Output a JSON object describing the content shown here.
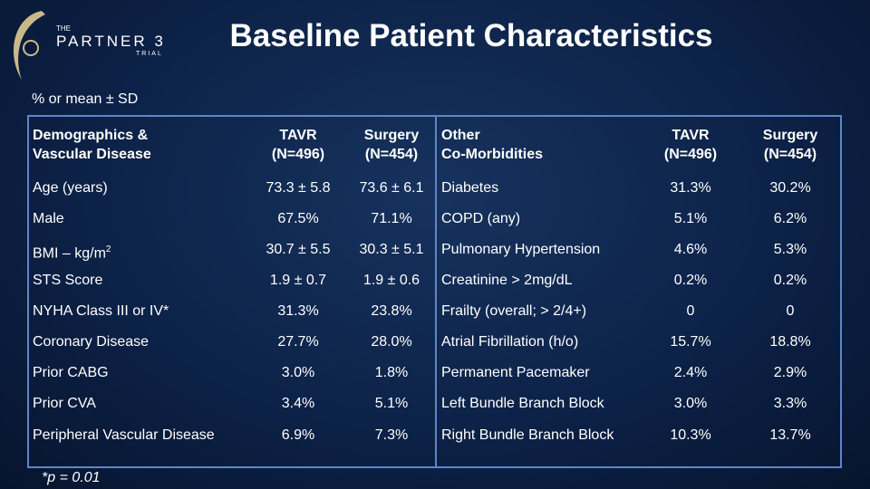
{
  "logo": {
    "top": "THE",
    "name": "PARTNER 3",
    "bottom": "TRIAL"
  },
  "header": {
    "title": "Baseline Patient Characteristics",
    "subtitle": "% or mean ± SD"
  },
  "left_table": {
    "columns": [
      [
        "Demographics &",
        "Vascular Disease"
      ],
      [
        "TAVR",
        "(N=496)"
      ],
      [
        "Surgery",
        "(N=454)"
      ]
    ],
    "rows": [
      [
        {
          "text": "Age (years)"
        },
        "73.3 ± 5.8",
        "73.6 ± 6.1"
      ],
      [
        {
          "text": "Male"
        },
        "67.5%",
        "71.1%"
      ],
      [
        {
          "text": "BMI – kg/m",
          "sup": "2"
        },
        "30.7 ± 5.5",
        "30.3 ± 5.1"
      ],
      [
        {
          "text": "STS Score"
        },
        "1.9 ± 0.7",
        "1.9 ± 0.6"
      ],
      [
        {
          "text": "NYHA Class III or IV*"
        },
        "31.3%",
        "23.8%"
      ],
      [
        {
          "text": "Coronary Disease"
        },
        "27.7%",
        "28.0%"
      ],
      [
        {
          "text": "Prior CABG"
        },
        "3.0%",
        "1.8%"
      ],
      [
        {
          "text": "Prior CVA"
        },
        "3.4%",
        "5.1%"
      ],
      [
        {
          "text": "Peripheral Vascular Disease"
        },
        "6.9%",
        "7.3%"
      ]
    ]
  },
  "right_table": {
    "columns": [
      [
        "Other",
        "Co-Morbidities"
      ],
      [
        "TAVR",
        "(N=496)"
      ],
      [
        "Surgery",
        "(N=454)"
      ]
    ],
    "rows": [
      [
        {
          "text": "Diabetes"
        },
        "31.3%",
        "30.2%"
      ],
      [
        {
          "text": "COPD (any)"
        },
        "5.1%",
        "6.2%"
      ],
      [
        {
          "text": "Pulmonary Hypertension"
        },
        "4.6%",
        "5.3%"
      ],
      [
        {
          "text": "Creatinine > 2mg/dL"
        },
        "0.2%",
        "0.2%"
      ],
      [
        {
          "text": "Frailty (overall; > 2/4+)"
        },
        "0",
        "0"
      ],
      [
        {
          "text": "Atrial Fibrillation (h/o)"
        },
        "15.7%",
        "18.8%"
      ],
      [
        {
          "text": "Permanent Pacemaker"
        },
        "2.4%",
        "2.9%"
      ],
      [
        {
          "text": "Left Bundle Branch Block"
        },
        "3.0%",
        "3.3%"
      ],
      [
        {
          "text": "Right Bundle Branch Block"
        },
        "10.3%",
        "13.7%"
      ]
    ]
  },
  "footnote": "*p = 0.01"
}
